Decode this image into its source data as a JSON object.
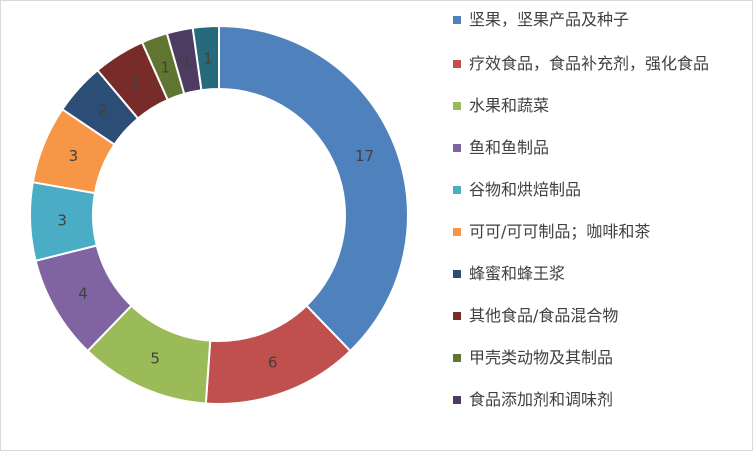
{
  "chart_data": {
    "type": "pie",
    "variant": "donut",
    "categories": [
      "坚果，坚果产品及种子",
      "疗效食品，食品补充剂，强化食品",
      "水果和蔬菜",
      "鱼和鱼制品",
      "谷物和烘焙制品",
      "可可/可可制品；咖啡和茶",
      "蜂蜜和蜂王浆",
      "其他食品/食品混合物",
      "甲壳类动物及其制品",
      "食品添加剂和调味剂",
      ""
    ],
    "values": [
      17,
      6,
      5,
      4,
      3,
      3,
      2,
      2,
      1,
      1,
      1
    ],
    "data_labels": [
      "17",
      "6",
      "5",
      "4",
      "3",
      "3",
      "2",
      "2",
      "1",
      "1",
      "1"
    ],
    "colors": [
      "#4f81bd",
      "#c0504d",
      "#9bbb59",
      "#8064a2",
      "#4bacc6",
      "#f79646",
      "#2c4d75",
      "#772c2a",
      "#5f7530",
      "#4d3b62",
      "#276a7c"
    ],
    "legend_position": "right",
    "start_angle_deg": 0,
    "direction": "clockwise"
  }
}
